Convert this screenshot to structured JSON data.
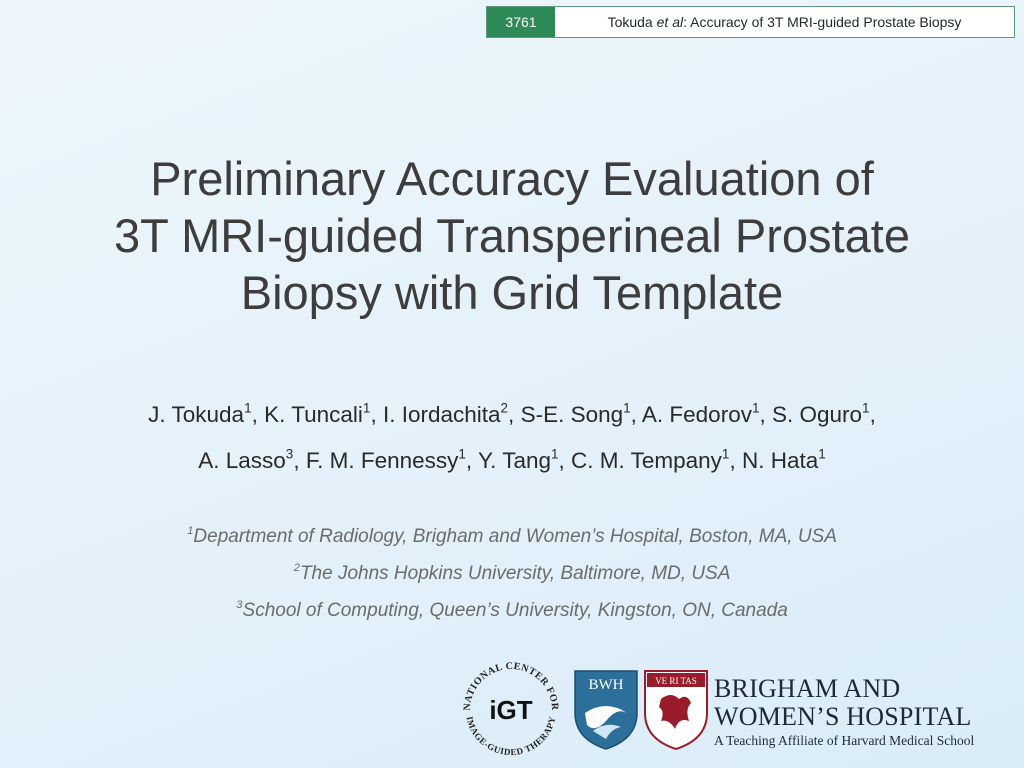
{
  "header": {
    "slide_number": "3761",
    "running_title_author": "Tokuda",
    "running_title_etal": "et al",
    "running_title_rest": " : Accuracy of 3T MRI-guided Prostate Biopsy"
  },
  "title": {
    "line1": "Preliminary Accuracy Evaluation of",
    "line2": "3T MRI-guided Transperineal Prostate",
    "line3": "Biopsy with Grid Template"
  },
  "authors": [
    {
      "name": "J. Tokuda",
      "sup": "1"
    },
    {
      "name": "K. Tuncali",
      "sup": "1"
    },
    {
      "name": "I. Iordachita",
      "sup": "2"
    },
    {
      "name": "S-E. Song",
      "sup": "1"
    },
    {
      "name": "A. Fedorov",
      "sup": "1"
    },
    {
      "name": "S. Oguro",
      "sup": "1"
    },
    {
      "name": "A. Lasso",
      "sup": "3"
    },
    {
      "name": "F. M. Fennessy",
      "sup": "1"
    },
    {
      "name": "Y. Tang",
      "sup": "1"
    },
    {
      "name": "C. M. Tempany",
      "sup": "1"
    },
    {
      "name": "N. Hata",
      "sup": "1"
    }
  ],
  "affiliations": [
    {
      "sup": "1",
      "text": "Department of Radiology, Brigham and Women’s Hospital, Boston, MA, USA"
    },
    {
      "sup": "2",
      "text": "The Johns Hopkins University, Baltimore, MD, USA"
    },
    {
      "sup": "3",
      "text": "School of Computing, Queen’s University, Kingston, ON, Canada"
    }
  ],
  "logos": {
    "ncigt_ring_top": "NATIONAL CENTER FOR",
    "ncigt_ring_bottom": "IMAGE-GUIDED THERAPY",
    "ncigt_mark": "iGT",
    "bwh_mark": "BWH",
    "crest_motto": "VE RI TAS",
    "hospital_line1": "BRIGHAM AND",
    "hospital_line2": "WOMEN’S HOSPITAL",
    "hospital_tagline": "A Teaching Affiliate of Harvard Medical School"
  },
  "colors": {
    "badge_green": "#2e8b57",
    "title_text": "#3d3d3d",
    "affiliation_text": "#6b6b6b",
    "bwh_blue": "#2b6f9a",
    "crest_red": "#9a1c2b"
  }
}
